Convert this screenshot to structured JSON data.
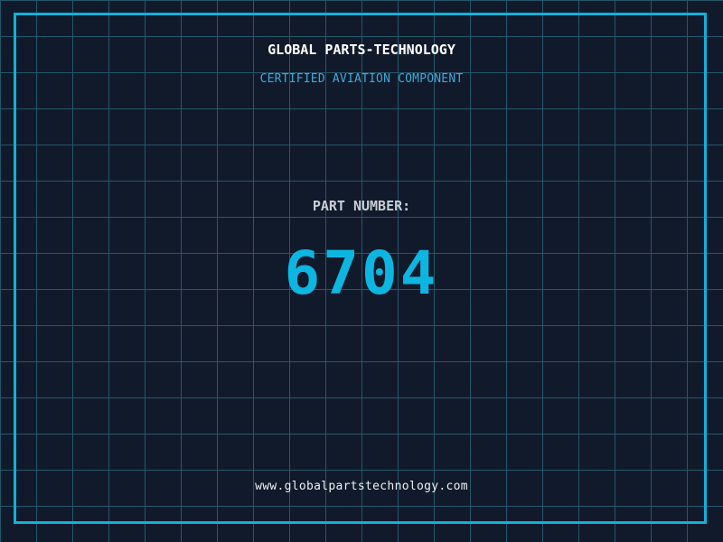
{
  "colors": {
    "background": "#111a2b",
    "grid": "#24576b",
    "frame": "#10b1d9",
    "title_text": "#ffffff",
    "subtitle_text": "#3fa9d8",
    "label_text": "#c9ced5",
    "part_number_text": "#0cb6e0",
    "url_text": "#eef1f4"
  },
  "header": {
    "title": "GLOBAL PARTS-TECHNOLOGY",
    "subtitle": "CERTIFIED AVIATION COMPONENT"
  },
  "part": {
    "label": "PART NUMBER:",
    "number": "6704"
  },
  "footer": {
    "url": "www.globalpartstechnology.com"
  }
}
